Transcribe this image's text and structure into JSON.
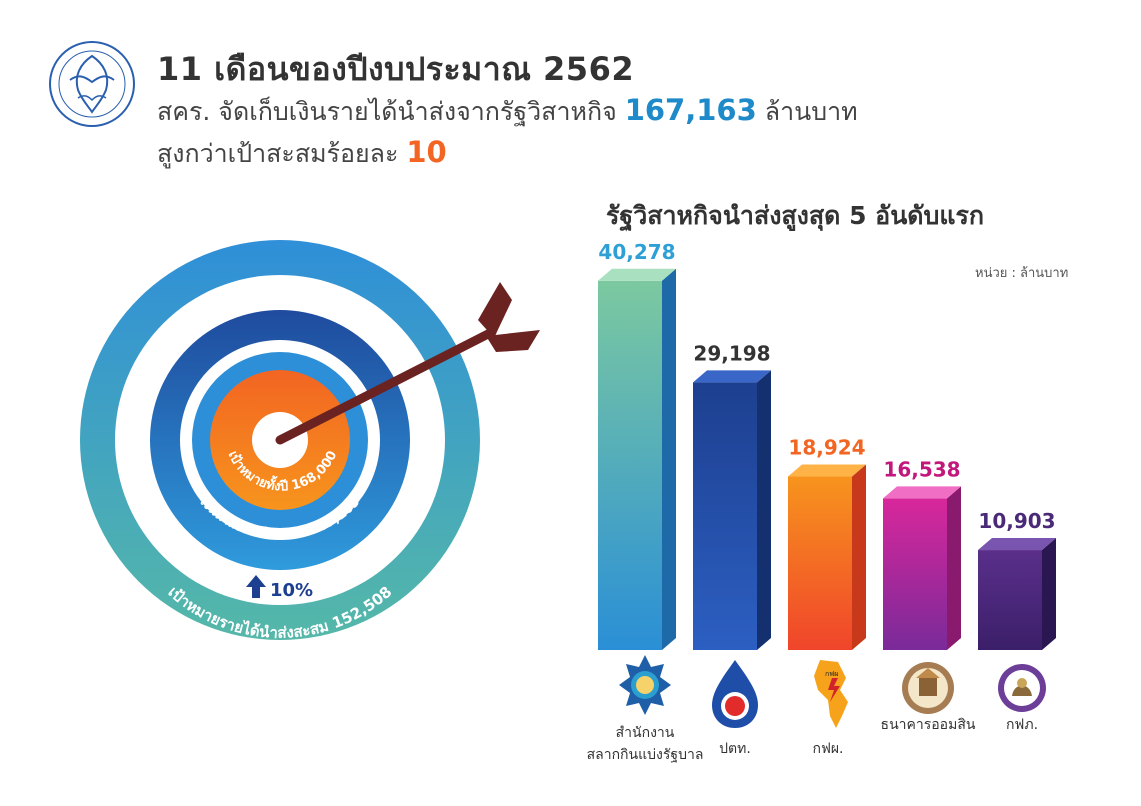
{
  "header": {
    "headline": "11 เดือนของปีงบประมาณ 2562",
    "line2_prefix": "สคร. จัดเก็บเงินรายได้นำส่งจากรัฐวิสาหกิจ",
    "line2_value": "167,163",
    "line2_suffix": "ล้านบาท",
    "line3_prefix": "สูงกว่าเป้าสะสมร้อยละ",
    "line3_value": "10"
  },
  "target": {
    "inner_label": "เป้าหมายทั้งปี",
    "inner_value": "168,000",
    "middle_label": "เงินนำส่งรายได้สะสม",
    "middle_value": "167,163",
    "outer_label": "เป้าหมายรายได้นำส่งสะสม",
    "outer_value": "152,508",
    "growth": "10%"
  },
  "colors": {
    "dark_blue": "#1d3f8f",
    "mid_blue": "#2b8fd6",
    "teal": "#3aa8c4",
    "orange": "#f26522",
    "magenta": "#c2187c",
    "purple": "#4a2a78",
    "arrow": "#6b2322"
  },
  "chart_data": {
    "type": "bar",
    "title": "รัฐวิสาหกิจนำส่งสูงสุด 5 อันดับแรก",
    "unit": "หน่วย : ล้านบาท",
    "categories": [
      "สำนักงานสลากกินแบ่งรัฐบาล",
      "ปตท.",
      "กฟผ.",
      "ธนาคารออมสิน",
      "กฟภ."
    ],
    "category_lines": [
      [
        "สำนักงาน",
        "สลากกินแบ่งรัฐบาล"
      ],
      [
        "ปตท."
      ],
      [
        "กฟผ."
      ],
      [
        "ธนาคารออมสิน"
      ],
      [
        "กฟภ."
      ]
    ],
    "values": [
      40278,
      29198,
      18924,
      16538,
      10903
    ],
    "value_labels": [
      "40,278",
      "29,198",
      "18,924",
      "16,538",
      "10,903"
    ],
    "label_colors": [
      "#2fa0d6",
      "#333333",
      "#f26522",
      "#c2187c",
      "#4a2a78"
    ],
    "ylim": [
      0,
      42000
    ]
  }
}
